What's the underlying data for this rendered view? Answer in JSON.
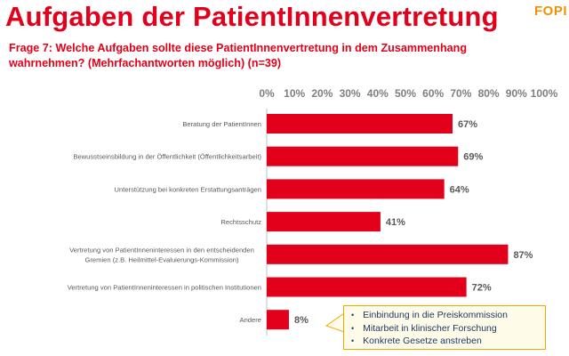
{
  "header": {
    "title": "Aufgaben der PatientInnenvertretung",
    "logo": "FOPI",
    "question": "Frage 7: Welche Aufgaben sollte diese PatientInnenvertretung in dem Zusammenhang wahrnehmen? (Mehrfachantworten möglich) (n=39)"
  },
  "colors": {
    "bar": "#e2001a",
    "title": "#e2001a",
    "logo": "#f29100",
    "callout_border": "#f0a800",
    "callout_text": "#1f3864"
  },
  "chart_data": {
    "type": "bar",
    "orientation": "horizontal",
    "title": "",
    "xlabel": "",
    "ylabel": "",
    "xlim": [
      0,
      100
    ],
    "ticks": [
      "0%",
      "10%",
      "20%",
      "30%",
      "40%",
      "50%",
      "60%",
      "70%",
      "80%",
      "90%",
      "100%"
    ],
    "tick_position": "top",
    "grid": false,
    "categories": [
      [
        "Beratung der PatientInnen"
      ],
      [
        "Bewusstseinsbildung in der Öffentlichkeit (Öffentlichkeitsarbeit)"
      ],
      [
        "Unterstützung bei konkreten Erstattungsanträgen"
      ],
      [
        "Rechtsschutz"
      ],
      [
        "Vertretung von PatientInneninteressen in den entscheidenden",
        "Gremien (z.B. Heilmittel-Evaluierungs-Kommission)"
      ],
      [
        "Vertretung von PatientInneninteressen in politischen Institutionen"
      ],
      [
        "Andere"
      ]
    ],
    "values": [
      67,
      69,
      64,
      41,
      87,
      72,
      8
    ],
    "value_labels": [
      "67%",
      "69%",
      "64%",
      "41%",
      "87%",
      "72%",
      "8%"
    ]
  },
  "callout": {
    "items": [
      "Einbindung in die Preiskommission",
      "Mitarbeit in klinischer Forschung",
      "Konkrete Gesetze anstreben"
    ]
  }
}
